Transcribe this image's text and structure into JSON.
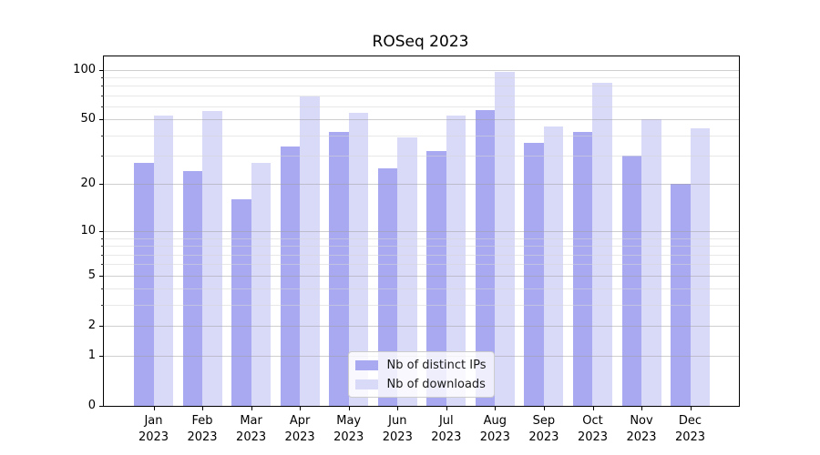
{
  "window": {
    "background": "#ffffff"
  },
  "chart_data": {
    "type": "bar",
    "title": "ROSeq 2023",
    "xlabel": "",
    "ylabel": "",
    "y_scale": "log1p",
    "grid": true,
    "legend_position": "lower center",
    "ylim": [
      0,
      120
    ],
    "y_ticks": [
      0,
      1,
      2,
      5,
      10,
      20,
      50,
      100
    ],
    "y_minor_ticks": [
      3,
      4,
      6,
      7,
      8,
      9,
      30,
      40,
      60,
      70,
      80,
      90
    ],
    "categories": [
      "Jan",
      "Feb",
      "Mar",
      "Apr",
      "May",
      "Jun",
      "Jul",
      "Aug",
      "Sep",
      "Oct",
      "Nov",
      "Dec"
    ],
    "year_label": "2023",
    "series": [
      {
        "name": "Nb of distinct IPs",
        "color": "#a9a9f1",
        "values": [
          27,
          24,
          16,
          34,
          42,
          25,
          32,
          57,
          36,
          42,
          30,
          20
        ]
      },
      {
        "name": "Nb of downloads",
        "color": "#d9d9f8",
        "values": [
          53,
          56,
          27,
          69,
          55,
          39,
          53,
          97,
          45,
          83,
          50,
          44
        ]
      }
    ]
  },
  "colors": {
    "spine": "#000000",
    "major_grid": "#a0a0a0",
    "minor_grid": "#d6d6d6",
    "text": "#000000"
  }
}
